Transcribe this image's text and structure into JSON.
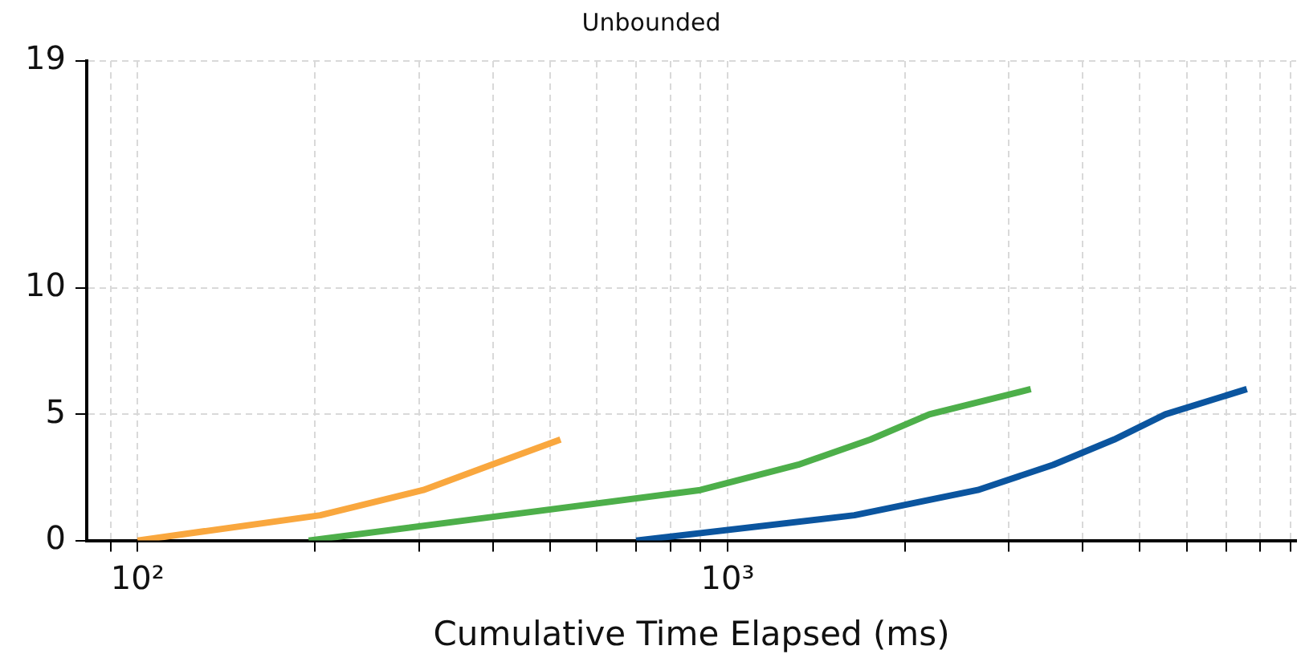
{
  "chart_data": {
    "type": "line",
    "title": "Unbounded",
    "xlabel": "Cumulative Time Elapsed (ms)",
    "log": "x",
    "grid": true,
    "xlim": [
      82,
      9200
    ],
    "xticks": [
      {
        "value": 90,
        "label": null
      },
      {
        "value": 100,
        "label": "10²"
      },
      {
        "value": 200,
        "label": null
      },
      {
        "value": 300,
        "label": null
      },
      {
        "value": 400,
        "label": null
      },
      {
        "value": 500,
        "label": null
      },
      {
        "value": 600,
        "label": null
      },
      {
        "value": 700,
        "label": null
      },
      {
        "value": 800,
        "label": null
      },
      {
        "value": 900,
        "label": null
      },
      {
        "value": 1000,
        "label": "10³"
      },
      {
        "value": 2000,
        "label": null
      },
      {
        "value": 3000,
        "label": null
      },
      {
        "value": 4000,
        "label": null
      },
      {
        "value": 5000,
        "label": null
      },
      {
        "value": 6000,
        "label": null
      },
      {
        "value": 7000,
        "label": null
      },
      {
        "value": 8000,
        "label": null
      },
      {
        "value": 9000,
        "label": null
      }
    ],
    "ylim": [
      0,
      19
    ],
    "yticks": [
      0,
      5,
      10,
      19
    ],
    "series": [
      {
        "color": "#f9a73e",
        "x": [
          100,
          204,
          305,
          398,
          521
        ],
        "values": [
          0,
          1,
          2,
          3,
          4
        ]
      },
      {
        "color": "#4daf4a",
        "x": [
          195,
          420,
          899,
          1317,
          1746,
          2198,
          3266
        ],
        "values": [
          0,
          1,
          2,
          3,
          4,
          5,
          6
        ]
      },
      {
        "color": "#0b559f",
        "x": [
          700,
          1640,
          2655,
          3565,
          4520,
          5520,
          7590
        ],
        "values": [
          0,
          1,
          2,
          3,
          4,
          5,
          6
        ]
      }
    ]
  }
}
